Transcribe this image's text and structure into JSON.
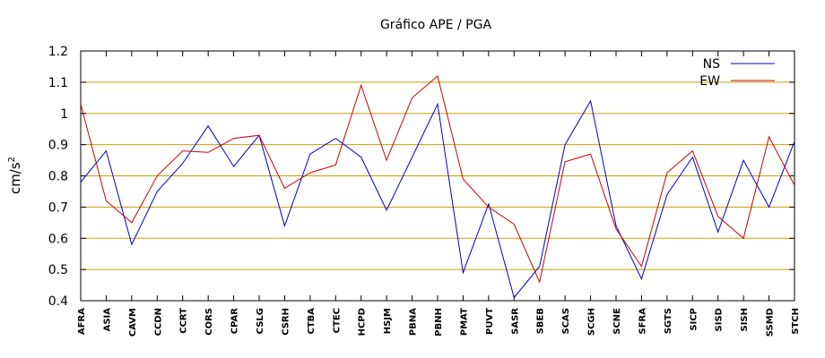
{
  "chart_data": {
    "type": "line",
    "title": "Gráfico  APE / PGA",
    "xlabel": "",
    "ylabel": "cm/s",
    "ylabel_superscript": "2",
    "ylim": [
      0.4,
      1.2
    ],
    "yticks": [
      "0.4",
      "0.5",
      "0.6",
      "0.7",
      "0.8",
      "0.9",
      "1",
      "1.1",
      "1.2"
    ],
    "grid": "horizontal",
    "grid_color": "#c8a000",
    "legend_position": "top-right",
    "categories": [
      "AFRA",
      "ASIA",
      "CAVM",
      "CCDN",
      "CCRT",
      "CORS",
      "CPAR",
      "CSLG",
      "CSRH",
      "CTBA",
      "CTEC",
      "HCPD",
      "HSJM",
      "PBNA",
      "PBNH",
      "PMAT",
      "PUVT",
      "SASR",
      "SBEB",
      "SCAS",
      "SCGH",
      "SCNE",
      "SFRA",
      "SGTS",
      "SICP",
      "SISD",
      "SISH",
      "SSMD",
      "STCH"
    ],
    "series": [
      {
        "name": "NS",
        "color": "#0000cc",
        "values": [
          0.78,
          0.88,
          0.58,
          0.75,
          0.84,
          0.96,
          0.83,
          0.93,
          0.64,
          0.87,
          0.92,
          0.86,
          0.69,
          0.86,
          1.03,
          0.49,
          0.71,
          0.41,
          0.51,
          0.9,
          1.04,
          0.64,
          0.47,
          0.74,
          0.86,
          0.62,
          0.85,
          0.7,
          0.91
        ]
      },
      {
        "name": "EW",
        "color": "#cc0000",
        "values": [
          1.03,
          0.72,
          0.65,
          0.8,
          0.88,
          0.875,
          0.92,
          0.93,
          0.76,
          0.81,
          0.835,
          1.09,
          0.85,
          1.05,
          1.12,
          0.79,
          0.7,
          0.645,
          0.46,
          0.845,
          0.87,
          0.63,
          0.51,
          0.81,
          0.88,
          0.67,
          0.6,
          0.925,
          0.77
        ]
      }
    ]
  }
}
